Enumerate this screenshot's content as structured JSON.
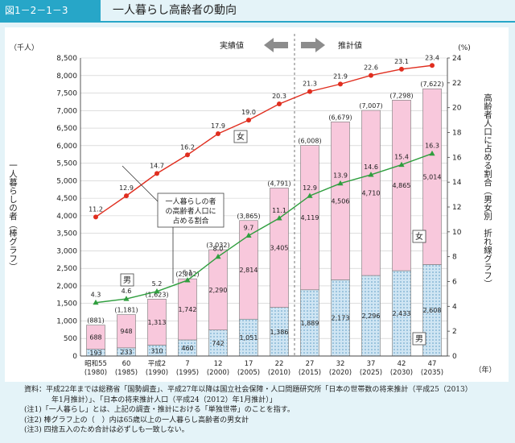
{
  "header": {
    "figure_number": "図1－2－1－3",
    "title": "一人暮らし高齢者の動向"
  },
  "chart_labels": {
    "left_unit": "（千人）",
    "right_unit": "(%)",
    "left_axis_title": "一人暮らしの者（棒グラフ）",
    "right_axis_title": "高齢者人口に占める割合（男女別　折れ線グラフ）",
    "x_unit": "（年）",
    "actual_label": "実績値",
    "projected_label": "推計値",
    "female_line_tag": "女",
    "female_bar_tag": "女",
    "male_line_tag": "男",
    "male_bar_tag": "男",
    "callout_line1": "一人暮らしの者",
    "callout_line2": "の高齢者人口に",
    "callout_line3": "占める割合"
  },
  "chart_data": {
    "type": "bar",
    "stacked": true,
    "categories": [
      {
        "line1": "昭和55",
        "line2": "(1980)"
      },
      {
        "line1": "60",
        "line2": "(1985)"
      },
      {
        "line1": "平成2",
        "line2": "(1990)"
      },
      {
        "line1": "7",
        "line2": "(1995)"
      },
      {
        "line1": "12",
        "line2": "(2000)"
      },
      {
        "line1": "17",
        "line2": "(2005)"
      },
      {
        "line1": "22",
        "line2": "(2010)"
      },
      {
        "line1": "27",
        "line2": "(2015)"
      },
      {
        "line1": "32",
        "line2": "(2020)"
      },
      {
        "line1": "37",
        "line2": "(2025)"
      },
      {
        "line1": "42",
        "line2": "(2030)"
      },
      {
        "line1": "47",
        "line2": "(2035)"
      }
    ],
    "bar_series": [
      {
        "name": "男",
        "values": [
          193,
          233,
          310,
          460,
          742,
          1051,
          1386,
          1889,
          2173,
          2296,
          2433,
          2608
        ],
        "labels": [
          "193",
          "233",
          "310",
          "460",
          "742",
          "1,051",
          "1,386",
          "1,889",
          "2,173",
          "2,296",
          "2,433",
          "2,608"
        ]
      },
      {
        "name": "女",
        "values": [
          688,
          948,
          1313,
          1742,
          2290,
          2814,
          3405,
          4119,
          4506,
          4710,
          4865,
          5014
        ],
        "labels": [
          "688",
          "948",
          "1,313",
          "1,742",
          "2,290",
          "2,814",
          "3,405",
          "4,119",
          "4,506",
          "4,710",
          "4,865",
          "5,014"
        ]
      }
    ],
    "totals": [
      "(881)",
      "(1,181)",
      "(1,623)",
      "(2,202)",
      "(3,032)",
      "(3,865)",
      "(4,791)",
      "(6,008)",
      "(6,679)",
      "(7,007)",
      "(7,298)",
      "(7,622)"
    ],
    "line_series": [
      {
        "name": "女",
        "values": [
          11.2,
          12.9,
          14.7,
          16.2,
          17.9,
          19.0,
          20.3,
          21.3,
          21.9,
          22.6,
          23.1,
          23.4
        ],
        "color": "#e02e1f"
      },
      {
        "name": "男",
        "values": [
          4.3,
          4.6,
          5.2,
          6.1,
          8.0,
          9.7,
          11.1,
          12.9,
          13.9,
          14.6,
          15.4,
          16.3
        ],
        "color": "#2f9e3e"
      }
    ],
    "y_left": {
      "min": 0,
      "max": 8500,
      "step": 500
    },
    "y_right": {
      "min": 0,
      "max": 24,
      "step": 2
    },
    "projection_start_index": 7,
    "colors": {
      "male_bar": "#cfe5f3",
      "female_bar": "#f8c8dc",
      "bar_stroke": "#777777"
    }
  },
  "notes": [
    "資料：平成22年までは総務省「国勢調査」、平成27年以降は国立社会保障・人口問題研究所「日本の世帯数の将来推計（平成25（2013）",
    "年1月推計）」、「日本の将来推計人口（平成24（2012）年1月推計）」",
    "(注1)「一人暮らし」とは、上記の調査・推計における「単独世帯」のことを指す。",
    "(注2) 棒グラフ上の（　）内は65歳以上の一人暮らし高齢者の男女計",
    "(注3) 四捨五入のため合計は必ずしも一致しない。"
  ]
}
